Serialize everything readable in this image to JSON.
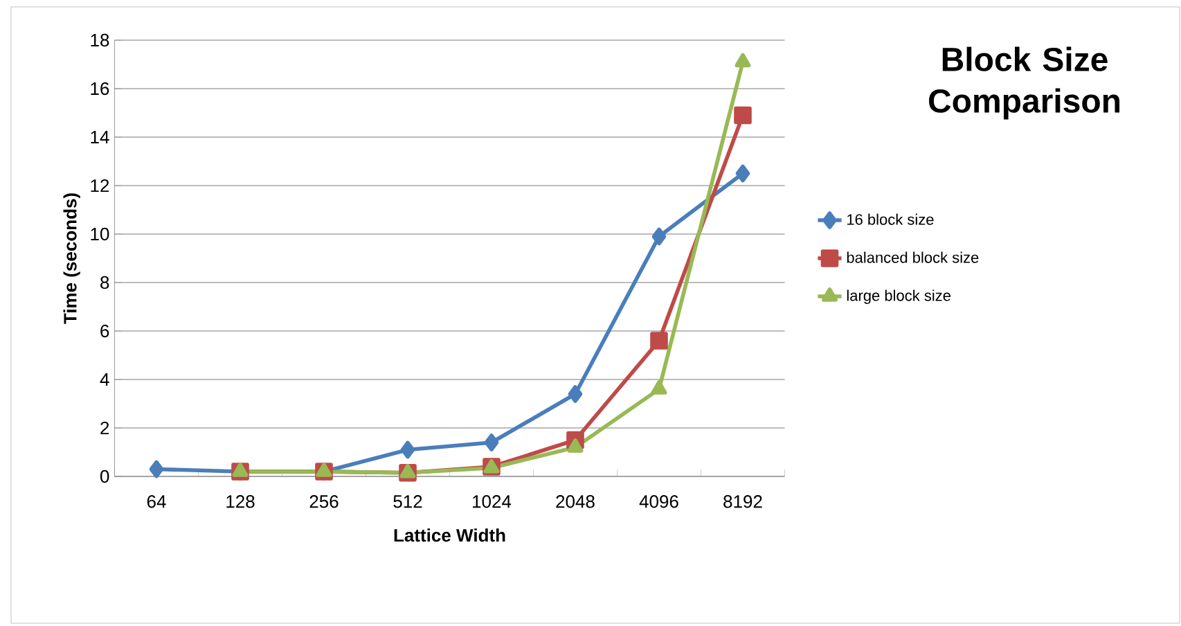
{
  "chart_data": {
    "type": "line",
    "title": "Block Size Comparison",
    "xlabel": "Lattice Width",
    "ylabel": "Time (seconds)",
    "categories": [
      "64",
      "128",
      "256",
      "512",
      "1024",
      "2048",
      "4096",
      "8192"
    ],
    "ylim": [
      0,
      18
    ],
    "yticks": [
      0,
      2,
      4,
      6,
      8,
      10,
      12,
      14,
      16,
      18
    ],
    "grid": "y",
    "legend": "right",
    "series": [
      {
        "name": "16 block size",
        "color": "#4a7ebb",
        "marker": "diamond",
        "values": [
          0.3,
          0.2,
          0.2,
          1.1,
          1.4,
          3.4,
          9.9,
          12.5
        ]
      },
      {
        "name": "balanced block size",
        "color": "#be4b48",
        "marker": "square",
        "values": [
          null,
          0.2,
          0.2,
          0.15,
          0.4,
          1.5,
          5.6,
          14.9
        ]
      },
      {
        "name": "large block size",
        "color": "#98b954",
        "marker": "triangle",
        "values": [
          null,
          0.2,
          0.2,
          0.15,
          0.35,
          1.2,
          3.6,
          17.1
        ]
      }
    ]
  }
}
